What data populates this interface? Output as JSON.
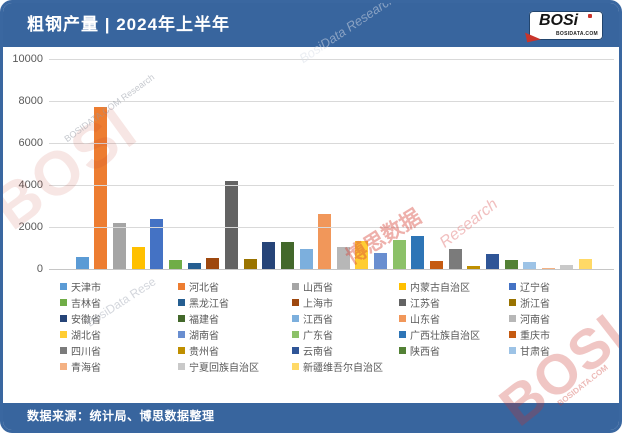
{
  "header": {
    "title": "粗钢产量 | 2024年上半年",
    "logo": {
      "brand": "BOSi",
      "domain": "BOSIDATA.COM"
    }
  },
  "footer": {
    "source": "数据来源：统计局、博思数据整理"
  },
  "colors": {
    "frame_blue": "#3A67A0",
    "header_blue": "#38659E",
    "logo_red": "#C9342B",
    "gridline": "#D9D9D9",
    "axis_text": "#595959"
  },
  "watermarks": [
    {
      "text": "BOSI"
    },
    {
      "text": "BOSIDATA.COM Research"
    },
    {
      "text": "BosiData Research"
    },
    {
      "text": "博思数据"
    },
    {
      "text": "Research"
    },
    {
      "text": "BosiData Rese"
    },
    {
      "text": "BOSI"
    },
    {
      "text": "BOSIDATA.COM"
    }
  ],
  "chart_data": {
    "type": "bar",
    "title": "粗钢产量 | 2024年上半年",
    "xlabel": "",
    "ylabel": "",
    "ylim": [
      0,
      10000
    ],
    "yticks": [
      0,
      2000,
      4000,
      6000,
      8000,
      10000
    ],
    "grid": true,
    "legend_position": "bottom",
    "series": [
      {
        "name": "天津市",
        "value": 590,
        "color": "#5B9BD5"
      },
      {
        "name": "河北省",
        "value": 7700,
        "color": "#ED7D31"
      },
      {
        "name": "山西省",
        "value": 2200,
        "color": "#A5A5A5"
      },
      {
        "name": "内蒙古自治区",
        "value": 1060,
        "color": "#FFC000"
      },
      {
        "name": "辽宁省",
        "value": 2400,
        "color": "#4472C4"
      },
      {
        "name": "吉林省",
        "value": 430,
        "color": "#70AD47"
      },
      {
        "name": "黑龙江省",
        "value": 290,
        "color": "#255E91"
      },
      {
        "name": "上海市",
        "value": 520,
        "color": "#9E480E"
      },
      {
        "name": "江苏省",
        "value": 4200,
        "color": "#636363"
      },
      {
        "name": "浙江省",
        "value": 460,
        "color": "#997300"
      },
      {
        "name": "安徽省",
        "value": 1270,
        "color": "#264478"
      },
      {
        "name": "福建省",
        "value": 1270,
        "color": "#43682B"
      },
      {
        "name": "江西省",
        "value": 930,
        "color": "#7CAFDD"
      },
      {
        "name": "山东省",
        "value": 2620,
        "color": "#F1975A"
      },
      {
        "name": "河南省",
        "value": 1050,
        "color": "#B7B7B7"
      },
      {
        "name": "湖北省",
        "value": 1330,
        "color": "#FFCD33"
      },
      {
        "name": "湖南省",
        "value": 760,
        "color": "#698ED0"
      },
      {
        "name": "广东省",
        "value": 1380,
        "color": "#8CC168"
      },
      {
        "name": "广西壮族自治区",
        "value": 1590,
        "color": "#2E75B6"
      },
      {
        "name": "重庆市",
        "value": 360,
        "color": "#C55A11"
      },
      {
        "name": "四川省",
        "value": 940,
        "color": "#7B7B7B"
      },
      {
        "name": "贵州省",
        "value": 160,
        "color": "#BF8F00"
      },
      {
        "name": "云南省",
        "value": 715,
        "color": "#2F5597"
      },
      {
        "name": "陕西省",
        "value": 440,
        "color": "#538135"
      },
      {
        "name": "甘肃省",
        "value": 355,
        "color": "#9DC3E6"
      },
      {
        "name": "青海省",
        "value": 65,
        "color": "#F4B183"
      },
      {
        "name": "宁夏回族自治区",
        "value": 195,
        "color": "#C9C9C9"
      },
      {
        "name": "新疆维吾尔自治区",
        "value": 455,
        "color": "#FFD966"
      }
    ]
  }
}
